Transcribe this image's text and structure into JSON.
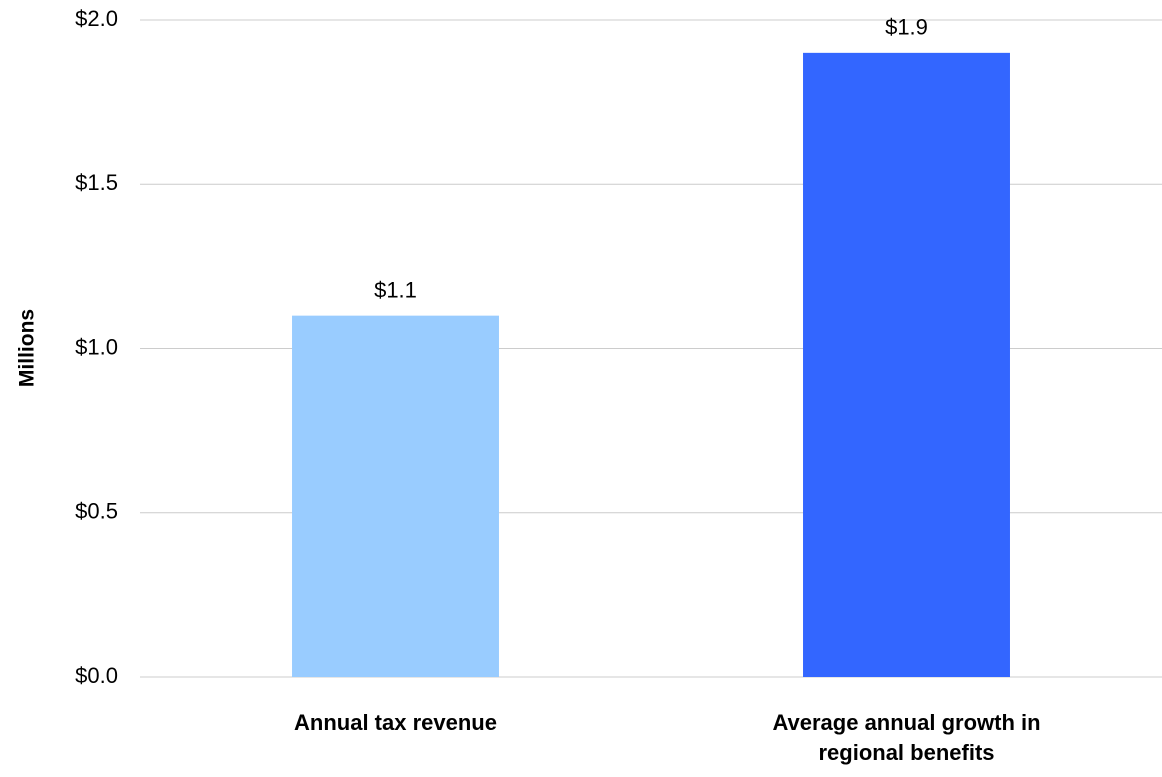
{
  "chart_data": {
    "type": "bar",
    "y_label": "Millions",
    "categories": [
      "Annual tax revenue",
      "Average annual growth in regional benefits"
    ],
    "values": [
      1.1,
      1.9
    ],
    "value_labels": [
      "$1.1",
      "$1.9"
    ],
    "colors": [
      "#99ccff",
      "#3366ff"
    ],
    "ylim": [
      0,
      2.0
    ],
    "yticks": [
      {
        "value": 0,
        "label": "$0.0"
      },
      {
        "value": 0.5,
        "label": "$0.5"
      },
      {
        "value": 1.0,
        "label": "$1.0"
      },
      {
        "value": 1.5,
        "label": "$1.5"
      },
      {
        "value": 2.0,
        "label": "$2.0"
      }
    ],
    "grid": true
  }
}
